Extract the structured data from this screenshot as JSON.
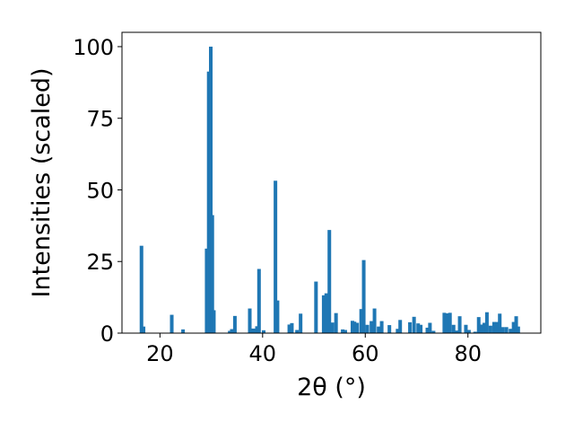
{
  "chart_data": {
    "type": "bar",
    "xlabel": "2θ (°)",
    "ylabel": "Intensities (scaled)",
    "xlim": [
      12.6,
      94.2
    ],
    "ylim": [
      0,
      105
    ],
    "x_ticks": [
      20,
      40,
      60,
      80
    ],
    "y_ticks": [
      0,
      25,
      50,
      75,
      100
    ],
    "bar_width_deg": 0.7,
    "bar_color": "#1f77b4",
    "grid": false,
    "legend": "none",
    "x": [
      16.4,
      16.8,
      22.3,
      24.5,
      29.1,
      29.5,
      29.9,
      30.2,
      30.5,
      33.6,
      34.0,
      34.6,
      37.5,
      38.2,
      38.9,
      39.3,
      40.2,
      42.5,
      42.9,
      45.2,
      45.7,
      46.7,
      47.4,
      50.4,
      51.9,
      52.4,
      53.0,
      53.6,
      54.3,
      55.6,
      56.1,
      57.5,
      57.9,
      58.4,
      59.2,
      59.7,
      60.4,
      61.2,
      61.8,
      62.6,
      63.2,
      64.7,
      66.3,
      66.8,
      68.7,
      69.5,
      70.3,
      70.8,
      72.1,
      72.6,
      73.3,
      75.4,
      75.9,
      76.5,
      77.2,
      77.8,
      78.4,
      79.6,
      80.2,
      81.4,
      82.1,
      82.7,
      83.2,
      83.7,
      84.4,
      85.1,
      85.6,
      86.2,
      86.8,
      87.5,
      88.3,
      88.9,
      89.4,
      89.8
    ],
    "values": [
      30.5,
      2.3,
      6.4,
      1.3,
      29.5,
      91.3,
      100.0,
      41.2,
      8.0,
      0.8,
      1.4,
      6.0,
      8.6,
      1.6,
      2.4,
      22.4,
      1.0,
      53.2,
      11.4,
      3.0,
      3.5,
      1.1,
      6.8,
      18.0,
      13.2,
      13.9,
      36.0,
      3.7,
      7.0,
      1.3,
      1.1,
      4.3,
      4.0,
      3.6,
      8.4,
      25.5,
      2.9,
      4.2,
      8.6,
      2.3,
      4.2,
      2.8,
      1.5,
      4.6,
      3.8,
      5.7,
      3.4,
      2.9,
      1.9,
      3.6,
      0.8,
      7.1,
      6.9,
      7.1,
      2.9,
      0.9,
      5.9,
      2.9,
      1.1,
      0.5,
      5.6,
      3.0,
      3.6,
      7.3,
      2.6,
      3.9,
      3.9,
      6.8,
      2.1,
      2.1,
      1.5,
      3.9,
      5.9,
      2.3
    ]
  }
}
